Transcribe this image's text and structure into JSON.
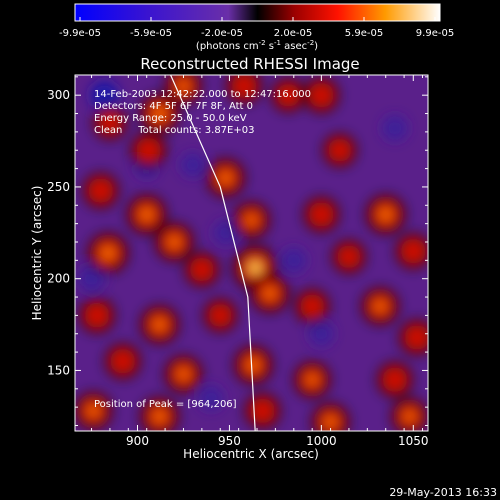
{
  "chart_data": {
    "type": "heatmap",
    "title": "Reconstructed RHESSI Image",
    "xlabel": "Heliocentric X (arcsec)",
    "ylabel": "Heliocentric Y (arcsec)",
    "xlim": [
      866,
      1058
    ],
    "ylim": [
      117,
      311
    ],
    "xticks": [
      900,
      950,
      1000,
      1050
    ],
    "yticks": [
      150,
      200,
      250,
      300
    ],
    "colorbar": {
      "ticks": [
        "-9.9e-05",
        "-5.9e-05",
        "-2.0e-05",
        "2.0e-05",
        "5.9e-05",
        "9.9e-05"
      ],
      "range": [
        -9.9e-05,
        9.9e-05
      ],
      "unit_label": "(photons cm",
      "unit_sup1": "-2",
      "unit_mid": " s",
      "unit_sup2": "-1",
      "unit_mid2": " asec",
      "unit_sup3": "-2",
      "unit_end": ")"
    },
    "annotations": [
      "14-Feb-2003 12:42:22.000 to 12:47:16.000",
      "Detectors: 4F 5F 6F 7F 8F, Att 0",
      "Energy Range: 25.0 - 50.0 keV",
      "Clean     Total counts: 3.87E+03"
    ],
    "peak_label": "Position of Peak = [964,206]",
    "peak": [
      964,
      206
    ],
    "limb_line": [
      [
        918,
        311
      ],
      [
        945,
        250
      ],
      [
        960,
        190
      ],
      [
        964,
        117
      ]
    ],
    "sources": [
      {
        "x": 912,
        "y": 290,
        "v": 0.75
      },
      {
        "x": 925,
        "y": 305,
        "v": 0.6
      },
      {
        "x": 958,
        "y": 305,
        "v": 0.55
      },
      {
        "x": 982,
        "y": 300,
        "v": 0.45
      },
      {
        "x": 1000,
        "y": 300,
        "v": 0.55
      },
      {
        "x": 885,
        "y": 285,
        "v": 0.45
      },
      {
        "x": 906,
        "y": 270,
        "v": 0.55
      },
      {
        "x": 948,
        "y": 255,
        "v": 0.7
      },
      {
        "x": 1010,
        "y": 270,
        "v": 0.45
      },
      {
        "x": 880,
        "y": 248,
        "v": 0.55
      },
      {
        "x": 905,
        "y": 235,
        "v": 0.75
      },
      {
        "x": 920,
        "y": 220,
        "v": 0.7
      },
      {
        "x": 962,
        "y": 232,
        "v": 0.6
      },
      {
        "x": 1000,
        "y": 235,
        "v": 0.55
      },
      {
        "x": 1035,
        "y": 235,
        "v": 0.75
      },
      {
        "x": 884,
        "y": 214,
        "v": 0.8
      },
      {
        "x": 935,
        "y": 205,
        "v": 0.5
      },
      {
        "x": 964,
        "y": 206,
        "v": 1.0
      },
      {
        "x": 1015,
        "y": 212,
        "v": 0.45
      },
      {
        "x": 1050,
        "y": 215,
        "v": 0.55
      },
      {
        "x": 878,
        "y": 180,
        "v": 0.55
      },
      {
        "x": 912,
        "y": 175,
        "v": 0.7
      },
      {
        "x": 945,
        "y": 180,
        "v": 0.45
      },
      {
        "x": 972,
        "y": 192,
        "v": 0.7
      },
      {
        "x": 995,
        "y": 185,
        "v": 0.5
      },
      {
        "x": 1032,
        "y": 185,
        "v": 0.65
      },
      {
        "x": 1052,
        "y": 168,
        "v": 0.55
      },
      {
        "x": 892,
        "y": 155,
        "v": 0.55
      },
      {
        "x": 925,
        "y": 148,
        "v": 0.65
      },
      {
        "x": 963,
        "y": 153,
        "v": 0.7
      },
      {
        "x": 995,
        "y": 145,
        "v": 0.6
      },
      {
        "x": 1040,
        "y": 145,
        "v": 0.55
      },
      {
        "x": 876,
        "y": 128,
        "v": 0.65
      },
      {
        "x": 912,
        "y": 125,
        "v": 0.7
      },
      {
        "x": 968,
        "y": 128,
        "v": 0.55
      },
      {
        "x": 1005,
        "y": 122,
        "v": 0.65
      },
      {
        "x": 1048,
        "y": 125,
        "v": 0.6
      }
    ],
    "sinks": [
      {
        "x": 882,
        "y": 300,
        "v": 0.55
      },
      {
        "x": 905,
        "y": 262,
        "v": 0.35
      },
      {
        "x": 930,
        "y": 262,
        "v": 0.3
      },
      {
        "x": 1040,
        "y": 282,
        "v": 0.35
      },
      {
        "x": 875,
        "y": 200,
        "v": 0.4
      },
      {
        "x": 948,
        "y": 225,
        "v": 0.3
      },
      {
        "x": 985,
        "y": 210,
        "v": 0.35
      },
      {
        "x": 1000,
        "y": 170,
        "v": 0.3
      },
      {
        "x": 940,
        "y": 135,
        "v": 0.3
      }
    ]
  },
  "footer_timestamp": "29-May-2013 16:33"
}
